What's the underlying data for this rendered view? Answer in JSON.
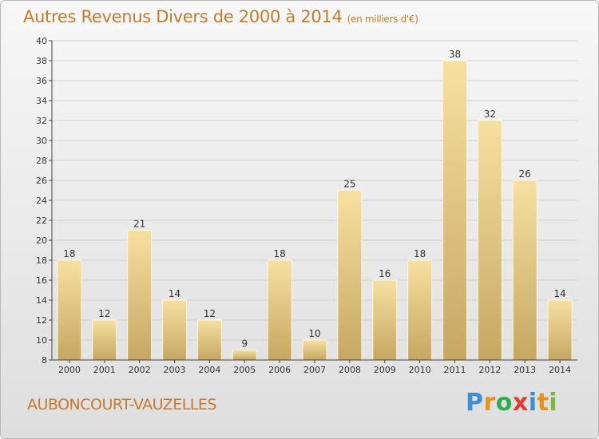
{
  "title": "Autres Revenus Divers de 2000 à 2014",
  "title_unit": "(en milliers d'€)",
  "commune": "AUBONCOURT-VAUZELLES",
  "logo": [
    "P",
    "r",
    "o",
    "x",
    "i",
    "t",
    "i"
  ],
  "logo_colors": [
    "#3b8fd6",
    "#e8921a",
    "#2fae4e",
    "#e23b2e",
    "#3b8fd6",
    "#e8921a",
    "#7ab83a"
  ],
  "colors": {
    "title": "#c47c2c",
    "bar_light": "#f6e0a1",
    "bar_dark": "#c6a762",
    "grid": "#d0d0d0",
    "axis": "#444444"
  },
  "chart_data": {
    "type": "bar",
    "title": "Autres Revenus Divers de 2000 à 2014",
    "categories": [
      "2000",
      "2001",
      "2002",
      "2003",
      "2004",
      "2005",
      "2006",
      "2007",
      "2008",
      "2009",
      "2010",
      "2011",
      "2012",
      "2013",
      "2014"
    ],
    "values": [
      18,
      12,
      21,
      14,
      12,
      9,
      18,
      10,
      25,
      16,
      18,
      38,
      32,
      26,
      14
    ],
    "ylim": [
      8,
      40
    ],
    "yticks": [
      8,
      10,
      12,
      14,
      16,
      18,
      20,
      22,
      24,
      26,
      28,
      30,
      32,
      34,
      36,
      38,
      40
    ],
    "grid": true,
    "data_labels": true
  }
}
